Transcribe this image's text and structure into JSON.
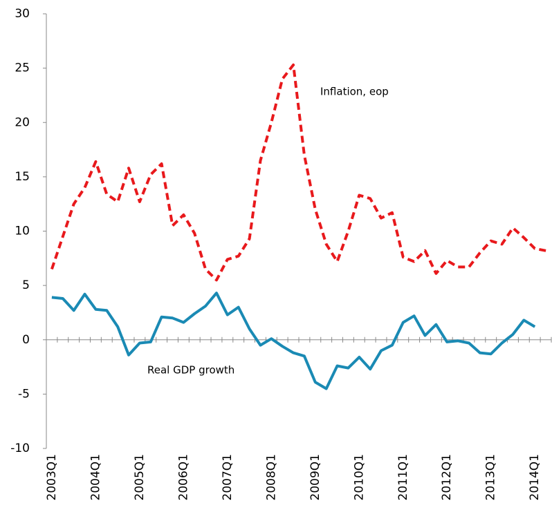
{
  "chart_data": {
    "type": "line",
    "categories": [
      "2003Q1",
      null,
      null,
      null,
      "2004Q1",
      null,
      null,
      null,
      "2005Q1",
      null,
      null,
      null,
      "2006Q1",
      null,
      null,
      null,
      "2007Q1",
      null,
      null,
      null,
      "2008Q1",
      null,
      null,
      null,
      "2009Q1",
      null,
      null,
      null,
      "2010Q1",
      null,
      null,
      null,
      "2011Q1",
      null,
      null,
      null,
      "2012Q1",
      null,
      null,
      null,
      "2013Q1",
      null,
      null,
      null,
      "2014Q1",
      null
    ],
    "series": [
      {
        "name": "Inflation, eop",
        "color": "#e8191c",
        "style": "dashed",
        "values": [
          6.5,
          9.5,
          12.5,
          14,
          16.4,
          13.4,
          12.7,
          15.8,
          12.7,
          15.2,
          16.2,
          10.5,
          11.5,
          9.8,
          6.5,
          5.5,
          7.4,
          7.7,
          9.3,
          16.5,
          20,
          24,
          25.3,
          17,
          12,
          8.8,
          7.2,
          10,
          13.3,
          13,
          11.2,
          11.7,
          7.6,
          7.2,
          8.2,
          6.1,
          7.3,
          6.7,
          6.7,
          8,
          9.1,
          8.8,
          10.3,
          9.4,
          8.4,
          8.2
        ]
      },
      {
        "name": "Real GDP growth",
        "color": "#1a8ab4",
        "style": "solid",
        "values": [
          3.9,
          3.8,
          2.7,
          4.2,
          2.8,
          2.7,
          1.2,
          -1.4,
          -0.3,
          -0.2,
          2.1,
          2.0,
          1.6,
          2.4,
          3.1,
          4.3,
          2.3,
          3.0,
          1.0,
          -0.5,
          0.1,
          -0.6,
          -1.2,
          -1.5,
          -3.9,
          -4.5,
          -2.4,
          -2.6,
          -1.6,
          -2.7,
          -1.0,
          -0.5,
          1.6,
          2.2,
          0.4,
          1.4,
          -0.2,
          -0.1,
          -0.3,
          -1.2,
          -1.3,
          -0.3,
          0.5,
          1.8,
          1.2,
          null
        ]
      }
    ],
    "ylim": [
      -10,
      30
    ],
    "yticks": [
      -10,
      -5,
      0,
      5,
      10,
      15,
      20,
      25,
      30
    ]
  }
}
